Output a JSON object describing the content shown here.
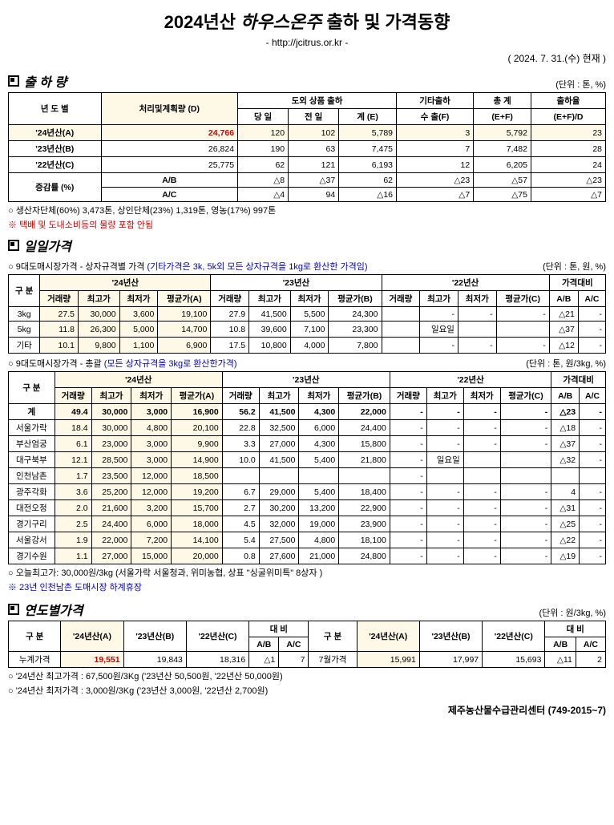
{
  "title_year": "2024년산",
  "title_product": "하우스온주",
  "title_suffix": "출하 및 가격동향",
  "subtitle": "- http://jcitrus.or.kr -",
  "as_of_date": "( 2024. 7. 31.(수) 현재 )",
  "section1": {
    "title": "출 하 량",
    "unit": "(단위 : 톤, %)",
    "headers": {
      "year": "년 도 별",
      "planned": "처리및계획량\n(D)",
      "offshore_group": "도외 상품 출하",
      "day": "당 일",
      "prev": "전 일",
      "total_e": "계 (E)",
      "other": "기타출하",
      "export": "수 출(F)",
      "sum": "총  계",
      "sum_ef": "(E+F)",
      "rate": "출하율",
      "rate_efd": "(E+F)/D"
    },
    "rows": [
      {
        "label": "'24년산(A)",
        "planned": "24,766",
        "day": "120",
        "prev": "102",
        "total": "5,789",
        "export": "3",
        "sum": "5,792",
        "rate": "23",
        "hl": true
      },
      {
        "label": "'23년산(B)",
        "planned": "26,824",
        "day": "190",
        "prev": "63",
        "total": "7,475",
        "export": "7",
        "sum": "7,482",
        "rate": "28"
      },
      {
        "label": "'22년산(C)",
        "planned": "25,775",
        "day": "62",
        "prev": "121",
        "total": "6,193",
        "export": "12",
        "sum": "6,205",
        "rate": "24"
      }
    ],
    "change": {
      "label": "증감률\n(%)",
      "ab": "A/B",
      "ab_v": [
        "△8",
        "△37",
        "62",
        "△23",
        "△57",
        "△23",
        ""
      ],
      "ac": "A/C",
      "ac_v": [
        "△4",
        "94",
        "△16",
        "△7",
        "△75",
        "△7",
        ""
      ]
    },
    "note1": "○ 생산자단체(60%) 3,473톤, 상인단체(23%) 1,319톤, 영농(17%) 997톤",
    "note2": "※ 택배 및 도내소비등의 물량 포함 안됨"
  },
  "section2": {
    "title": "일일가격",
    "sub1": "○ 9대도매시장가격 - 상자규격별 가격",
    "sub1_blue": "(기타가격은 3k, 5k외 모든 상자규격을 1kg로 환산한 가격임)",
    "unit1": "(단위 : 톤, 원, %)",
    "headers": {
      "gubun": "구  분",
      "y24": "'24년산",
      "y23": "'23년산",
      "y22": "'22년산",
      "compare": "가격대비",
      "vol": "거래량",
      "high": "최고가",
      "low": "최저가",
      "avg_a": "평균가(A)",
      "avg_b": "평균가(B)",
      "avg_c": "평균가(C)",
      "ab": "A/B",
      "ac": "A/C"
    },
    "rows1": [
      {
        "k": "3kg",
        "v24": [
          "27.5",
          "30,000",
          "3,600",
          "19,100"
        ],
        "v23": [
          "27.9",
          "41,500",
          "5,500",
          "24,300"
        ],
        "v22": [
          "",
          "-",
          "-",
          "-"
        ],
        "cmp": [
          "△21",
          "-"
        ]
      },
      {
        "k": "5kg",
        "v24": [
          "11.8",
          "26,300",
          "5,000",
          "14,700"
        ],
        "v23": [
          "10.8",
          "39,600",
          "7,100",
          "23,300"
        ],
        "v22": [
          "",
          "일요일",
          "",
          ""
        ],
        "cmp": [
          "△37",
          "-"
        ]
      },
      {
        "k": "기타",
        "v24": [
          "10.1",
          "9,800",
          "1,100",
          "6,900"
        ],
        "v23": [
          "17.5",
          "10,800",
          "4,000",
          "7,800"
        ],
        "v22": [
          "",
          "-",
          "-",
          "-"
        ],
        "cmp": [
          "△12",
          "-"
        ]
      }
    ],
    "sub2": "○ 9대도매시장가격 - 총괄",
    "sub2_blue": "(모든 상자규격을 3kg로 환산한가격)",
    "unit2": "(단위 : 톤, 원/3kg, %)",
    "rows2": [
      {
        "k": "계",
        "v24": [
          "49.4",
          "30,000",
          "3,000",
          "16,900"
        ],
        "v23": [
          "56.2",
          "41,500",
          "4,300",
          "22,000"
        ],
        "v22": [
          "-",
          "-",
          "-",
          "-"
        ],
        "cmp": [
          "△23",
          "-"
        ],
        "bold": true
      },
      {
        "k": "서울가락",
        "v24": [
          "18.4",
          "30,000",
          "4,800",
          "20,100"
        ],
        "v23": [
          "22.8",
          "32,500",
          "6,000",
          "24,400"
        ],
        "v22": [
          "-",
          "-",
          "-",
          "-"
        ],
        "cmp": [
          "△18",
          "-"
        ]
      },
      {
        "k": "부산엄궁",
        "v24": [
          "6.1",
          "23,000",
          "3,000",
          "9,900"
        ],
        "v23": [
          "3.3",
          "27,000",
          "4,300",
          "15,800"
        ],
        "v22": [
          "-",
          "-",
          "-",
          "-"
        ],
        "cmp": [
          "△37",
          "-"
        ]
      },
      {
        "k": "대구북부",
        "v24": [
          "12.1",
          "28,500",
          "3,000",
          "14,900"
        ],
        "v23": [
          "10.0",
          "41,500",
          "5,400",
          "21,800"
        ],
        "v22": [
          "-",
          "일요일",
          "",
          ""
        ],
        "cmp": [
          "△32",
          "-"
        ]
      },
      {
        "k": "인천남촌",
        "v24": [
          "1.7",
          "23,500",
          "12,000",
          "18,500"
        ],
        "v23": [
          "",
          "",
          "",
          ""
        ],
        "v22": [
          "-",
          "",
          "",
          ""
        ],
        "cmp": [
          "",
          ""
        ]
      },
      {
        "k": "광주각화",
        "v24": [
          "3.6",
          "25,200",
          "12,000",
          "19,200"
        ],
        "v23": [
          "6.7",
          "29,000",
          "5,400",
          "18,400"
        ],
        "v22": [
          "-",
          "-",
          "-",
          "-"
        ],
        "cmp": [
          "4",
          "-"
        ]
      },
      {
        "k": "대전오정",
        "v24": [
          "2.0",
          "21,600",
          "3,200",
          "15,700"
        ],
        "v23": [
          "2.7",
          "30,200",
          "13,200",
          "22,900"
        ],
        "v22": [
          "-",
          "-",
          "-",
          "-"
        ],
        "cmp": [
          "△31",
          "-"
        ]
      },
      {
        "k": "경기구리",
        "v24": [
          "2.5",
          "24,400",
          "6,000",
          "18,000"
        ],
        "v23": [
          "4.5",
          "32,000",
          "19,000",
          "23,900"
        ],
        "v22": [
          "-",
          "-",
          "-",
          "-"
        ],
        "cmp": [
          "△25",
          "-"
        ]
      },
      {
        "k": "서울강서",
        "v24": [
          "1.9",
          "22,000",
          "7,200",
          "14,100"
        ],
        "v23": [
          "5.4",
          "27,500",
          "4,800",
          "18,100"
        ],
        "v22": [
          "-",
          "-",
          "-",
          "-"
        ],
        "cmp": [
          "△22",
          "-"
        ]
      },
      {
        "k": "경기수원",
        "v24": [
          "1.1",
          "27,000",
          "15,000",
          "20,000"
        ],
        "v23": [
          "0.8",
          "27,600",
          "21,000",
          "24,800"
        ],
        "v22": [
          "-",
          "-",
          "-",
          "-"
        ],
        "cmp": [
          "△19",
          "-"
        ]
      }
    ],
    "note3": "○ 오늘최고가: 30,000원/3kg (서울가락 서울청과, 위미농협, 상표 \"싱굴위미특\" 8상자 )",
    "note4": "※ 23년 인천남촌 도매시장 하계휴장"
  },
  "section3": {
    "title": "연도별가격",
    "unit": "(단위 : 원/3kg, %)",
    "headers": {
      "gubun": "구  분",
      "y24": "'24년산(A)",
      "y23": "'23년산(B)",
      "y22": "'22년산(C)",
      "compare": "대  비",
      "ab": "A/B",
      "ac": "A/C"
    },
    "left": {
      "label": "누계가격",
      "v": [
        "19,551",
        "19,843",
        "18,316",
        "△1",
        "7"
      ]
    },
    "right": {
      "label": "7월가격",
      "v": [
        "15,991",
        "17,997",
        "15,693",
        "△11",
        "2"
      ]
    },
    "note5": "○ '24년산 최고가격 : 67,500원/3Kg ('23년산 50,500원, '22년산 50,000원)",
    "note6": "○ '24년산 최저가격 :  3,000원/3Kg ('23년산  3,000원, '22년산 2,700원)"
  },
  "footer": "제주농산물수급관리센터 (749-2015~7)"
}
